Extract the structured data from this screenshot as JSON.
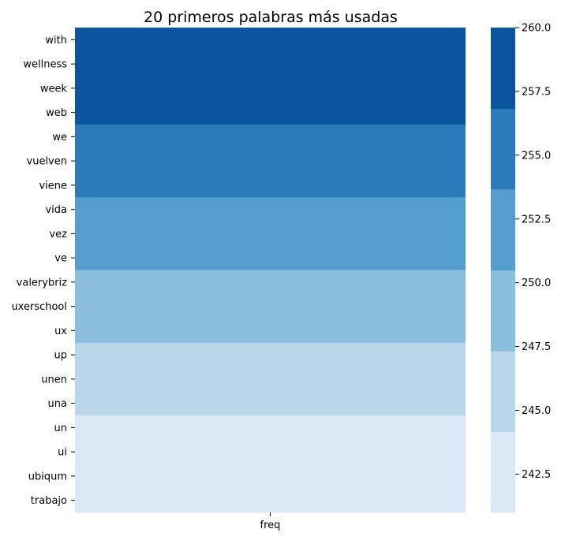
{
  "chart_data": {
    "type": "heatmap",
    "title": "20 primeros palabras más usadas",
    "xlabel": "",
    "ylabel": "",
    "x_categories": [
      "freq"
    ],
    "rows": [
      {
        "word": "with",
        "value": 260
      },
      {
        "word": "wellness",
        "value": 260
      },
      {
        "word": "week",
        "value": 260
      },
      {
        "word": "web",
        "value": 260
      },
      {
        "word": "we",
        "value": 255
      },
      {
        "word": "vuelven",
        "value": 255
      },
      {
        "word": "viene",
        "value": 255
      },
      {
        "word": "vida",
        "value": 252
      },
      {
        "word": "vez",
        "value": 252
      },
      {
        "word": "ve",
        "value": 252
      },
      {
        "word": "valerybriz",
        "value": 249
      },
      {
        "word": "uxerschool",
        "value": 249
      },
      {
        "word": "ux",
        "value": 249
      },
      {
        "word": "up",
        "value": 246
      },
      {
        "word": "unen",
        "value": 246
      },
      {
        "word": "una",
        "value": 246
      },
      {
        "word": "un",
        "value": 241
      },
      {
        "word": "ui",
        "value": 241
      },
      {
        "word": "ubiqum",
        "value": 241
      },
      {
        "word": "trabajo",
        "value": 241
      }
    ],
    "colorbar": {
      "range": [
        241,
        260
      ],
      "ticks": [
        "242.5",
        "245.0",
        "247.5",
        "250.0",
        "252.5",
        "255.0",
        "257.5",
        "260.0"
      ],
      "tick_values": [
        242.5,
        245.0,
        247.5,
        250.0,
        252.5,
        255.0,
        257.5,
        260.0
      ],
      "bands": [
        {
          "from": 241,
          "to": 244.17,
          "color": "#dbe9f6"
        },
        {
          "from": 244.17,
          "to": 247.33,
          "color": "#bad6eb"
        },
        {
          "from": 247.33,
          "to": 250.5,
          "color": "#89bedc"
        },
        {
          "from": 250.5,
          "to": 253.67,
          "color": "#539ecd"
        },
        {
          "from": 253.67,
          "to": 256.83,
          "color": "#2b7bba"
        },
        {
          "from": 256.83,
          "to": 260,
          "color": "#0b559f"
        }
      ]
    },
    "grid": false,
    "legend": "right"
  }
}
